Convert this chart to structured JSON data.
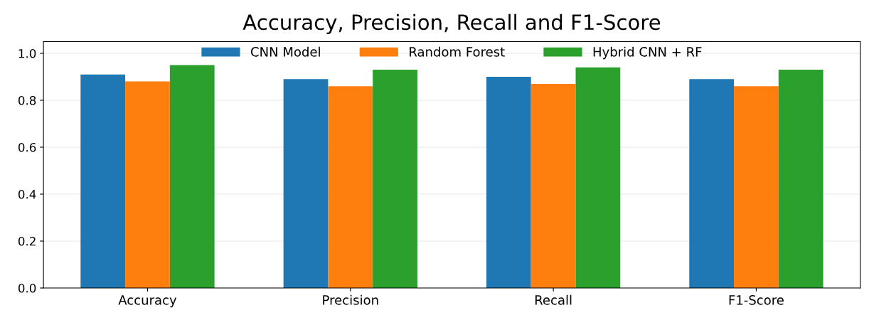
{
  "chart_data": {
    "type": "bar",
    "title": "Accuracy, Precision, Recall and F1-Score",
    "categories": [
      "Accuracy",
      "Precision",
      "Recall",
      "F1-Score"
    ],
    "series": [
      {
        "name": "CNN Model",
        "color": "#1f77b4",
        "values": [
          0.91,
          0.89,
          0.9,
          0.89
        ]
      },
      {
        "name": "Random Forest",
        "color": "#ff7f0e",
        "values": [
          0.88,
          0.86,
          0.87,
          0.86
        ]
      },
      {
        "name": "Hybrid CNN + RF",
        "color": "#2ca02c",
        "values": [
          0.95,
          0.93,
          0.94,
          0.93
        ]
      }
    ],
    "ylim": [
      0,
      1.05
    ],
    "yticks": [
      {
        "value": 0,
        "label": "0.0"
      },
      {
        "value": 0.2,
        "label": "0.2"
      },
      {
        "value": 0.4,
        "label": "0.4"
      },
      {
        "value": 0.6,
        "label": "0.6"
      },
      {
        "value": 0.8,
        "label": "0.8"
      },
      {
        "value": 1,
        "label": "1.0"
      }
    ],
    "grid": "y",
    "legend": "top"
  }
}
